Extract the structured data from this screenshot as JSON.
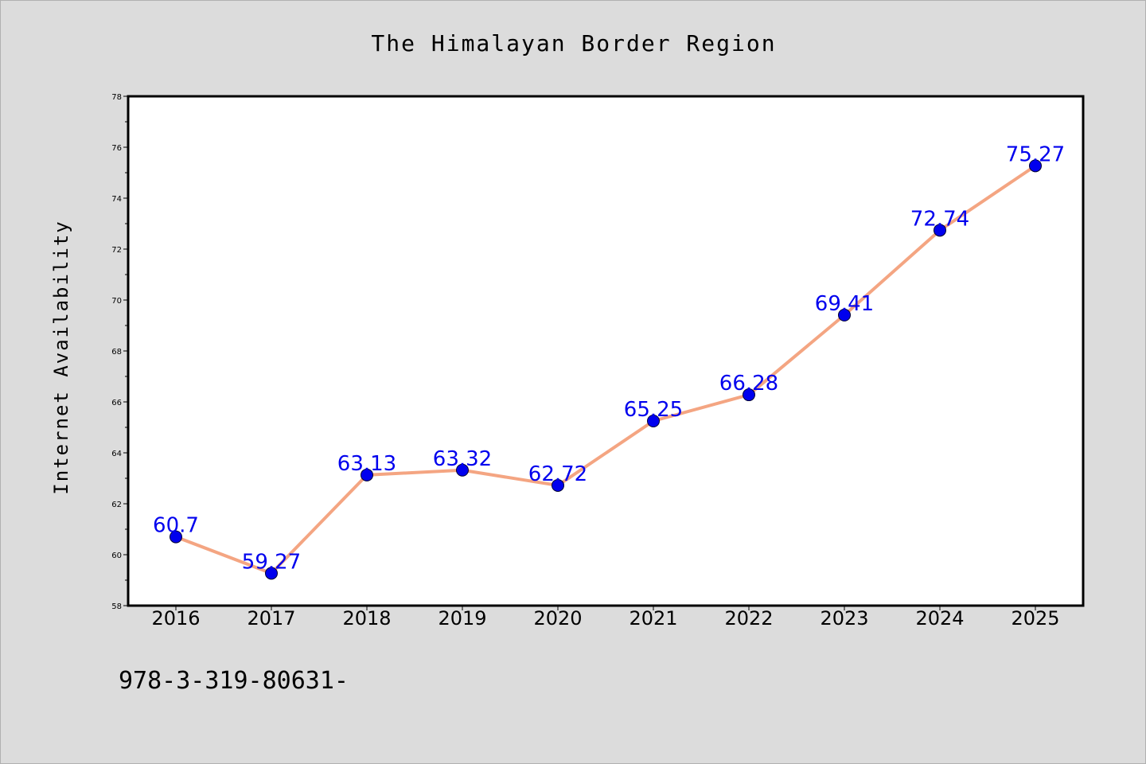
{
  "chart_data": {
    "type": "line",
    "title": "The Himalayan Border Region",
    "xlabel": "",
    "ylabel": "Internet Availability",
    "x": [
      "2016",
      "2017",
      "2018",
      "2019",
      "2020",
      "2021",
      "2022",
      "2023",
      "2024",
      "2025"
    ],
    "series": [
      {
        "values": [
          60.7,
          59.27,
          63.13,
          63.32,
          62.72,
          65.25,
          66.28,
          69.41,
          72.74,
          75.27
        ],
        "labels": [
          "60.7",
          "59.27",
          "63.13",
          "63.32",
          "62.72",
          "65.25",
          "66.28",
          "69.41",
          "72.74",
          "75.27"
        ],
        "line_color": "#f4a582",
        "marker_color": "#0000ee",
        "label_color": "#0000ee"
      }
    ],
    "ylim": [
      58,
      78
    ],
    "yticks": [
      "58",
      "60",
      "62",
      "64",
      "66",
      "68",
      "70",
      "72",
      "74",
      "76",
      "78"
    ],
    "grid": false,
    "legend": "none"
  },
  "footer": {
    "text": "978-3-319-80631-"
  },
  "colors": {
    "background": "#dcdcdc",
    "plot_background": "#ffffff",
    "axis": "#000000"
  }
}
